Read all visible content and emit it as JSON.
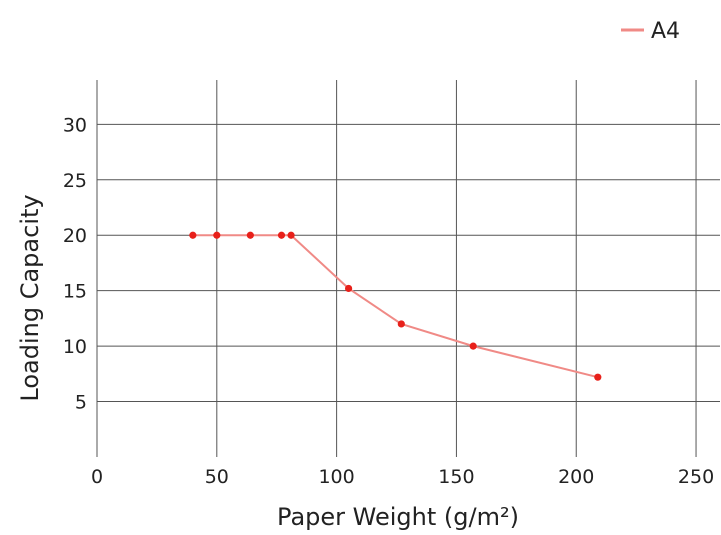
{
  "chart_data": {
    "type": "line",
    "title": "",
    "xlabel": "Paper Weight (g/m²)",
    "ylabel": "Loading Capacity",
    "xlim": [
      0,
      260
    ],
    "ylim": [
      0,
      34
    ],
    "xticks": [
      0,
      50,
      100,
      150,
      200,
      250
    ],
    "yticks": [
      5,
      10,
      15,
      20,
      25,
      30
    ],
    "grid": true,
    "legend": "top-right",
    "series": [
      {
        "name": "A4",
        "color": "#e8201a",
        "line_color": "#f08a86",
        "x": [
          40,
          50,
          64,
          77,
          81,
          105,
          127,
          157,
          209
        ],
        "y": [
          20,
          20,
          20,
          20,
          20,
          15.2,
          12,
          10,
          7.2
        ]
      }
    ]
  }
}
